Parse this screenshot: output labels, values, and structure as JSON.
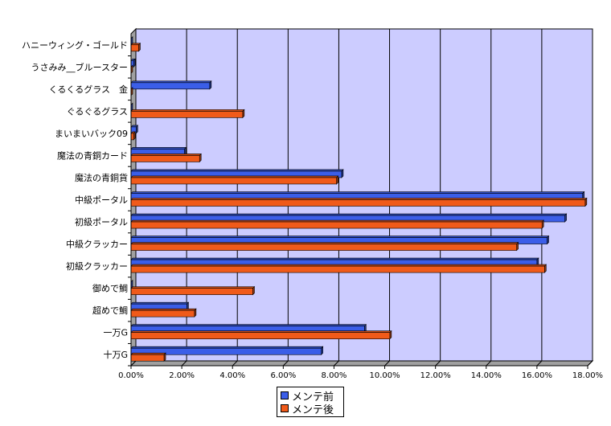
{
  "chart_data": {
    "type": "bar",
    "orientation": "horizontal",
    "categories": [
      "ハニーウィング・ゴールド",
      "うさみみ__ブルースター",
      "くるくるグラス　金",
      "ぐるぐるグラス",
      "まいまいバック09",
      "魔法の青銅カード",
      "魔法の青銅貨",
      "中級ポータル",
      "初級ポータル",
      "中級クラッカー",
      "初級クラッカー",
      "御めで鯛",
      "超めで鯛",
      "一万G",
      "十万G"
    ],
    "series": [
      {
        "name": "メンテ前",
        "color": "#3b5ee8",
        "values": [
          0.0,
          0.1,
          3.1,
          0.0,
          0.2,
          2.1,
          8.3,
          17.8,
          17.1,
          16.4,
          16.0,
          0.0,
          2.2,
          9.2,
          7.5
        ]
      },
      {
        "name": "メンテ後",
        "color": "#f05a1a",
        "values": [
          0.3,
          0.0,
          0.0,
          4.4,
          0.1,
          2.7,
          8.1,
          17.9,
          16.2,
          15.2,
          16.3,
          4.8,
          2.5,
          10.2,
          1.3
        ]
      }
    ],
    "xlim": [
      0,
      18
    ],
    "xticks": [
      "0.00%",
      "2.00%",
      "4.00%",
      "6.00%",
      "8.00%",
      "10.00%",
      "12.00%",
      "14.00%",
      "16.00%",
      "18.00%"
    ],
    "plot_background": "#ccccff",
    "grid": true,
    "legend_position": "bottom"
  }
}
